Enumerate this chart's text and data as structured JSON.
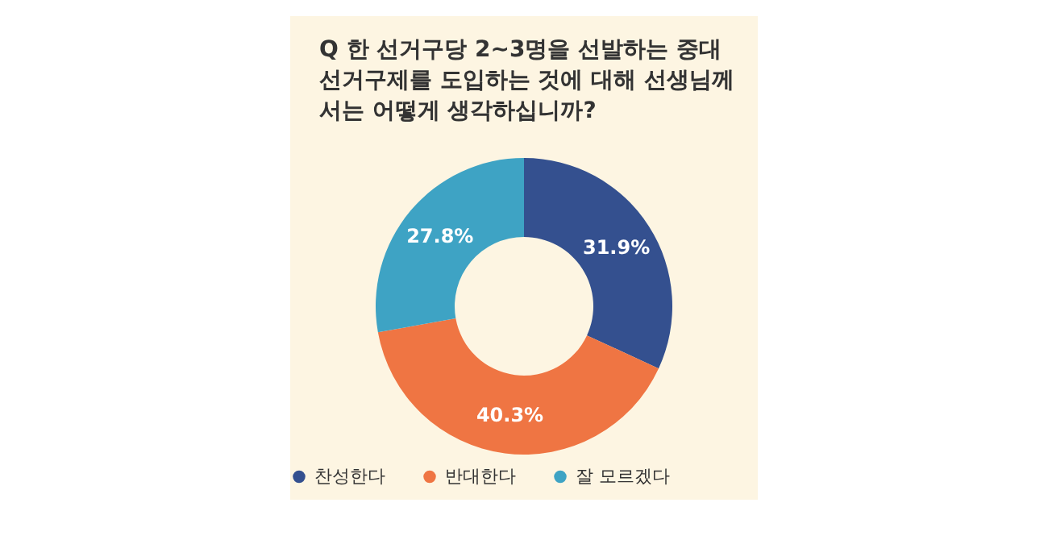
{
  "chart_data": {
    "type": "donut",
    "title": "Q 한 선거구당 2~3명을 선발하는 중대선거구제를 도입하는 것에 대해 선생님께서는 어떻게 생각하십니까?",
    "categories": [
      "찬성한다",
      "반대한다",
      "잘 모르겠다"
    ],
    "values": [
      31.9,
      40.3,
      27.8
    ],
    "colors": [
      "#34508f",
      "#ef7543",
      "#3ea3c4"
    ],
    "value_labels": [
      "31.9%",
      "40.3%",
      "27.8%"
    ],
    "legend": "bottom"
  }
}
